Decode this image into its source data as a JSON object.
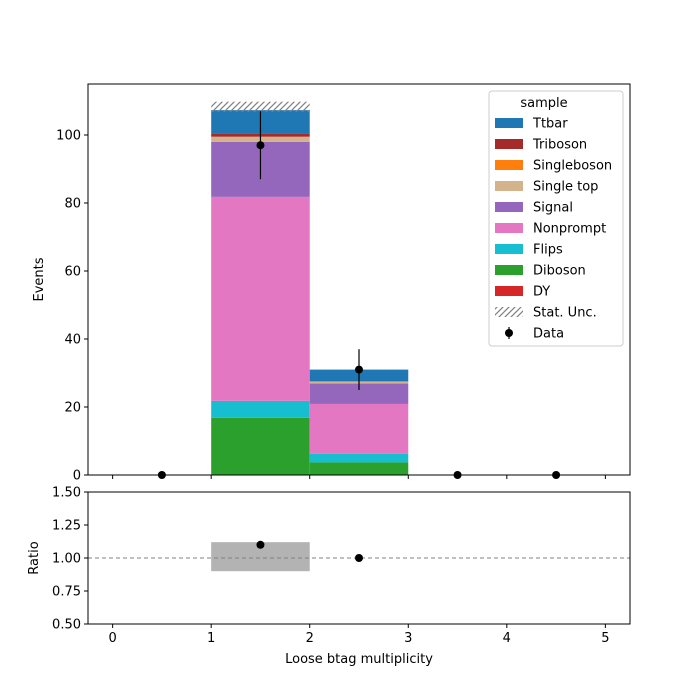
{
  "chart_data": {
    "type": "bar",
    "stacked": true,
    "x_bin_edges": [
      0,
      1,
      2,
      3,
      4,
      5
    ],
    "x_ticks": [
      0,
      1,
      2,
      3,
      4,
      5
    ],
    "xlim": [
      -0.25,
      5.25
    ],
    "xlabel": "Loose btag multiplicity",
    "main_panel": {
      "ylabel": "Events",
      "ylim": [
        0,
        115
      ],
      "y_ticks": [
        0,
        20,
        40,
        60,
        80,
        100
      ],
      "legend": {
        "title": "sample",
        "placement": "top-right",
        "entries": [
          "Ttbar",
          "Triboson",
          "Singleboson",
          "Single top",
          "Signal",
          "Nonprompt",
          "Flips",
          "Diboson",
          "DY",
          "Stat. Unc.",
          "Data"
        ]
      },
      "series": [
        {
          "name": "DY",
          "color": "#d62728",
          "values": [
            0,
            0,
            0,
            0,
            0
          ]
        },
        {
          "name": "Diboson",
          "color": "#2ca02c",
          "values": [
            0,
            16.8,
            3.7,
            0,
            0
          ]
        },
        {
          "name": "Flips",
          "color": "#17becf",
          "values": [
            0,
            5.0,
            2.5,
            0,
            0
          ]
        },
        {
          "name": "Nonprompt",
          "color": "#e377c2",
          "values": [
            0,
            60.0,
            14.7,
            0,
            0
          ]
        },
        {
          "name": "Signal",
          "color": "#9467bd",
          "values": [
            0,
            16.2,
            6.0,
            0,
            0
          ]
        },
        {
          "name": "Single top",
          "color": "#d4b38c",
          "values": [
            0,
            1.5,
            0.6,
            0,
            0
          ]
        },
        {
          "name": "Singleboson",
          "color": "#ff7f0e",
          "values": [
            0,
            0,
            0,
            0,
            0
          ]
        },
        {
          "name": "Triboson",
          "color": "#a52a2a",
          "values": [
            0,
            1.0,
            0.1,
            0,
            0
          ]
        },
        {
          "name": "Ttbar",
          "color": "#1f77b4",
          "values": [
            0,
            6.8,
            3.4,
            0,
            0
          ]
        }
      ],
      "stat_unc": [
        {
          "bin": 1,
          "low": 106.8,
          "high": 109.8
        },
        {
          "bin": 2,
          "low": 31.0,
          "high": 31.0
        }
      ],
      "data": {
        "name": "Data",
        "x": [
          0.5,
          1.5,
          2.5,
          3.5,
          4.5
        ],
        "y": [
          0,
          97,
          31,
          0,
          0
        ],
        "yerr": [
          0,
          10,
          6,
          0,
          0
        ]
      }
    },
    "ratio_panel": {
      "ylabel": "Ratio",
      "ylim": [
        0.5,
        1.5
      ],
      "y_ticks": [
        "0.50",
        "0.75",
        "1.00",
        "1.25",
        "1.50"
      ],
      "reference": 1.0,
      "unc_bands": [
        {
          "x0": 1,
          "x1": 2,
          "low": 0.9,
          "high": 1.12
        }
      ],
      "points": {
        "x": [
          1.5,
          2.5
        ],
        "y": [
          1.1,
          1.0
        ]
      }
    }
  }
}
